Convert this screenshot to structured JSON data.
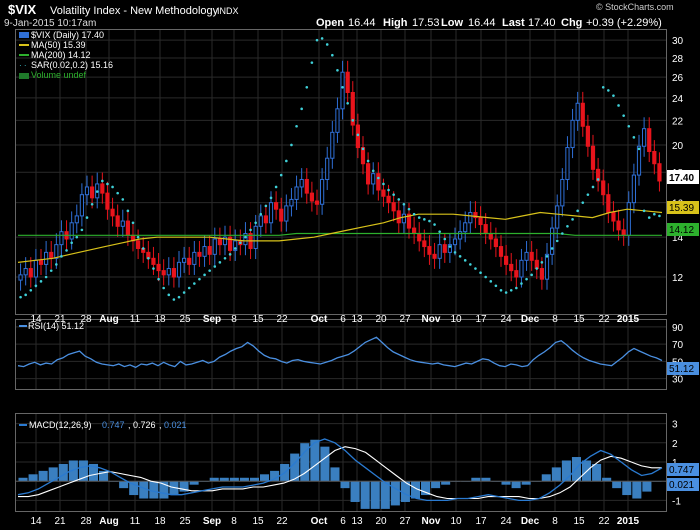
{
  "header": {
    "symbol": "$VIX",
    "name": "Volatility Index - New Methodology",
    "exchange": "INDX",
    "date": "9-Jan-2015 10:17am",
    "open_label": "Open",
    "open": "16.44",
    "high_label": "High",
    "high": "17.53",
    "low_label": "Low",
    "low": "16.44",
    "last_label": "Last",
    "last": "17.40",
    "chg_label": "Chg",
    "chg": "+0.39 (+2.29%)",
    "watermark": "© StockCharts.com"
  },
  "legend": {
    "price": "$VIX (Daily) 17.40",
    "ma50": "MA(50) 15.39",
    "ma200": "MA(200) 14.12",
    "sar": "SAR(0.02,0.2) 15.16",
    "volume": "Volume undef"
  },
  "rsi_panel": {
    "label": "RSI(14) 51.12",
    "badge": "51.12"
  },
  "macd_panel": {
    "label_prefix": "MACD(12,26,9)",
    "macd_value": "0.747",
    "signal_value": "0.726",
    "hist_value": "0.021",
    "badge_macd": "0.747",
    "badge_hist": "0.021"
  },
  "x_axis_labels": [
    "14",
    "21",
    "28",
    "Aug",
    "11",
    "18",
    "25",
    "Sep",
    "8",
    "15",
    "22",
    "Oct",
    "6",
    "13",
    "20",
    "27",
    "Nov",
    "10",
    "17",
    "24",
    "Dec",
    "8",
    "15",
    "22",
    "2015"
  ],
  "colors": {
    "up": "#2f6fd6",
    "down": "#e8141c",
    "ma50": "#d8c21a",
    "ma200": "#2db02d",
    "sar": "#3fd0d8",
    "grid": "#2a2a2a",
    "rsi": "#4a8fe0",
    "macd": "#1d1d1d",
    "macd_line": "#2a7ad0",
    "signal_line": "#ffffff",
    "hist": "#3a7fc0"
  },
  "chart_data": [
    {
      "type": "candlestick",
      "title": "$VIX Volatility Index - New Methodology INDX",
      "y_ticks": [
        12,
        14,
        16,
        18,
        20,
        22,
        24,
        26,
        28,
        30
      ],
      "ylim": [
        10.4,
        31.2
      ],
      "y_scale": "log",
      "badges": {
        "last": 17.4,
        "ma50": 15.39,
        "ma200": 14.12
      },
      "series_close": [
        12.1,
        12.4,
        12.0,
        12.8,
        12.6,
        13.2,
        12.9,
        13.6,
        14.3,
        13.9,
        14.8,
        15.2,
        16.5,
        17.0,
        16.3,
        17.2,
        16.6,
        15.6,
        15.2,
        14.6,
        14.9,
        14.1,
        13.8,
        13.4,
        13.2,
        12.9,
        12.6,
        12.3,
        12.1,
        12.4,
        12.0,
        12.7,
        12.9,
        12.6,
        13.2,
        13.0,
        13.5,
        13.1,
        13.9,
        13.6,
        14.0,
        13.3,
        13.8,
        13.6,
        14.2,
        13.4,
        14.6,
        15.2,
        14.8,
        16.0,
        15.6,
        14.9,
        15.8,
        16.2,
        17.0,
        17.5,
        16.6,
        16.1,
        15.9,
        17.5,
        19.0,
        21.0,
        23.0,
        26.5,
        24.5,
        21.6,
        19.8,
        18.6,
        17.2,
        17.9,
        16.8,
        16.4,
        16.0,
        15.5,
        14.8,
        15.3,
        14.5,
        14.2,
        13.8,
        13.5,
        13.1,
        12.9,
        13.6,
        13.2,
        13.6,
        13.9,
        14.3,
        14.8,
        15.4,
        15.1,
        14.7,
        14.2,
        13.9,
        13.5,
        13.0,
        12.6,
        12.3,
        12.0,
        12.8,
        13.2,
        12.8,
        12.4,
        11.9,
        13.1,
        14.5,
        15.8,
        17.5,
        19.8,
        22.0,
        23.5,
        21.5,
        19.9,
        18.2,
        17.4,
        16.5,
        15.4,
        14.9,
        14.4,
        14.1,
        16.0,
        17.8,
        19.9,
        21.3,
        19.5,
        18.6,
        17.4
      ],
      "series_ma50": [
        12.7,
        12.8,
        12.9,
        13.1,
        13.3,
        13.5,
        13.7,
        13.9,
        14.0,
        14.0,
        14.0,
        14.0,
        13.9,
        13.8,
        13.8,
        13.8,
        13.9,
        14.0,
        14.2,
        14.4,
        14.6,
        14.8,
        15.1,
        15.3,
        15.3,
        15.3,
        15.2,
        15.1,
        15.0,
        15.2,
        15.4,
        15.3,
        15.2,
        15.1,
        15.4,
        15.6,
        15.5,
        15.4
      ],
      "series_ma200": [
        14.1,
        14.1,
        14.1,
        14.1,
        14.1,
        14.1,
        14.1,
        14.1,
        14.1,
        14.1,
        14.1,
        14.1,
        14.1,
        14.1,
        14.1,
        14.1,
        14.2,
        14.2,
        14.2,
        14.2,
        14.2,
        14.2,
        14.2,
        14.2,
        14.2,
        14.2,
        14.2,
        14.2,
        14.2,
        14.2,
        14.2,
        14.2,
        14.1,
        14.1,
        14.1,
        14.1,
        14.1,
        14.1
      ],
      "series_sar": [
        11.1,
        11.2,
        11.4,
        11.6,
        11.8,
        12.0,
        12.3,
        12.6,
        13.0,
        13.3,
        13.7,
        14.0,
        14.4,
        15.1,
        15.9,
        16.7,
        17.4,
        17.2,
        17.0,
        16.6,
        16.2,
        15.5,
        14.8,
        14.0,
        13.4,
        12.9,
        12.4,
        11.9,
        11.5,
        11.2,
        11.0,
        11.1,
        11.3,
        11.5,
        11.7,
        11.9,
        12.1,
        12.3,
        12.5,
        12.7,
        12.9,
        13.1,
        13.4,
        13.7,
        14.0,
        14.4,
        14.8,
        15.3,
        15.8,
        16.3,
        17.0,
        17.8,
        18.8,
        20.0,
        21.5,
        23.0,
        25.0,
        27.5,
        30.0,
        30.2,
        29.5,
        28.3,
        26.7,
        25.0,
        23.5,
        22.0,
        20.8,
        19.7,
        18.8,
        18.1,
        17.6,
        17.2,
        16.8,
        16.5,
        16.2,
        15.9,
        15.6,
        15.3,
        15.1,
        15.0,
        14.9,
        14.7,
        14.3,
        13.9,
        13.5,
        13.2,
        13.0,
        12.8,
        12.6,
        12.4,
        12.2,
        12.0,
        11.8,
        11.6,
        11.4,
        11.3,
        11.4,
        11.5,
        11.7,
        11.9,
        12.1,
        12.4,
        12.7,
        13.0,
        13.4,
        13.8,
        14.2,
        14.6,
        15.0,
        15.5,
        16.0,
        16.5,
        17.0,
        17.5,
        25.0,
        24.7,
        24.2,
        23.3,
        22.4,
        21.5,
        20.6,
        19.7,
        15.5,
        15.1,
        15.3,
        15.2
      ],
      "x_labels": [
        "14",
        "21",
        "28",
        "Aug",
        "11",
        "18",
        "25",
        "Sep",
        "8",
        "15",
        "22",
        "Oct",
        "6",
        "13",
        "20",
        "27",
        "Nov",
        "10",
        "17",
        "24",
        "Dec",
        "8",
        "15",
        "22",
        "2015"
      ]
    },
    {
      "type": "line",
      "name": "RSI(14)",
      "y_ticks": [
        30,
        50,
        70,
        90
      ],
      "ylim": [
        18,
        98
      ],
      "values": [
        45,
        44,
        47,
        49,
        46,
        48,
        47,
        52,
        54,
        58,
        60,
        62,
        56,
        53,
        49,
        47,
        46,
        45,
        47,
        44,
        46,
        43,
        47,
        46,
        48,
        45,
        49,
        46,
        44,
        50,
        46,
        47,
        49,
        51,
        48,
        50,
        55,
        58,
        62,
        65,
        67,
        72,
        68,
        62,
        57,
        54,
        53,
        50,
        48,
        51,
        52,
        50,
        49,
        48,
        47,
        49,
        51,
        54,
        56,
        58,
        62,
        67,
        72,
        75,
        78,
        72,
        66,
        61,
        58,
        55,
        52,
        50,
        49,
        48,
        47,
        48,
        46,
        45,
        44,
        46,
        48,
        47,
        50,
        53,
        52,
        48,
        45,
        44,
        47,
        46,
        44,
        45,
        52,
        57,
        61,
        66,
        72,
        74,
        69,
        63,
        58,
        54,
        51,
        49,
        47,
        46,
        45,
        50,
        55,
        61,
        65,
        62,
        59,
        56,
        54,
        51
      ]
    },
    {
      "type": "line",
      "name": "MACD(12,26,9)",
      "y_ticks": [
        -1,
        0,
        1,
        2,
        3
      ],
      "ylim": [
        -1.55,
        3.5
      ],
      "macd": [
        -0.7,
        -0.6,
        -0.4,
        -0.1,
        0.2,
        0.5,
        0.7,
        0.8,
        0.7,
        0.5,
        0.2,
        -0.1,
        -0.3,
        -0.5,
        -0.6,
        -0.7,
        -0.7,
        -0.6,
        -0.5,
        -0.4,
        -0.3,
        -0.3,
        -0.3,
        -0.2,
        -0.1,
        0.1,
        0.4,
        0.9,
        1.5,
        2.0,
        2.2,
        2.0,
        1.6,
        1.1,
        0.7,
        0.3,
        -0.1,
        -0.4,
        -0.7,
        -0.9,
        -1.0,
        -1.0,
        -1.0,
        -0.9,
        -0.9,
        -0.8,
        -0.7,
        -0.8,
        -0.9,
        -1.0,
        -1.0,
        -0.9,
        -0.6,
        -0.2,
        0.3,
        0.9,
        1.3,
        1.6,
        1.4,
        1.0,
        0.6,
        0.3,
        0.4,
        0.7
      ],
      "signal": [
        -0.8,
        -0.8,
        -0.7,
        -0.5,
        -0.3,
        -0.1,
        0.1,
        0.3,
        0.4,
        0.5,
        0.4,
        0.3,
        0.2,
        0.0,
        -0.1,
        -0.3,
        -0.4,
        -0.5,
        -0.5,
        -0.5,
        -0.4,
        -0.4,
        -0.4,
        -0.3,
        -0.3,
        -0.2,
        -0.1,
        0.1,
        0.4,
        0.8,
        1.2,
        1.6,
        1.8,
        1.7,
        1.5,
        1.1,
        0.7,
        0.3,
        -0.1,
        -0.4,
        -0.6,
        -0.8,
        -0.9,
        -0.9,
        -0.9,
        -0.9,
        -0.8,
        -0.8,
        -0.8,
        -0.8,
        -0.9,
        -0.9,
        -0.8,
        -0.6,
        -0.3,
        0.2,
        0.7,
        1.1,
        1.3,
        1.2,
        1.0,
        0.8,
        0.7,
        0.7
      ]
    }
  ]
}
